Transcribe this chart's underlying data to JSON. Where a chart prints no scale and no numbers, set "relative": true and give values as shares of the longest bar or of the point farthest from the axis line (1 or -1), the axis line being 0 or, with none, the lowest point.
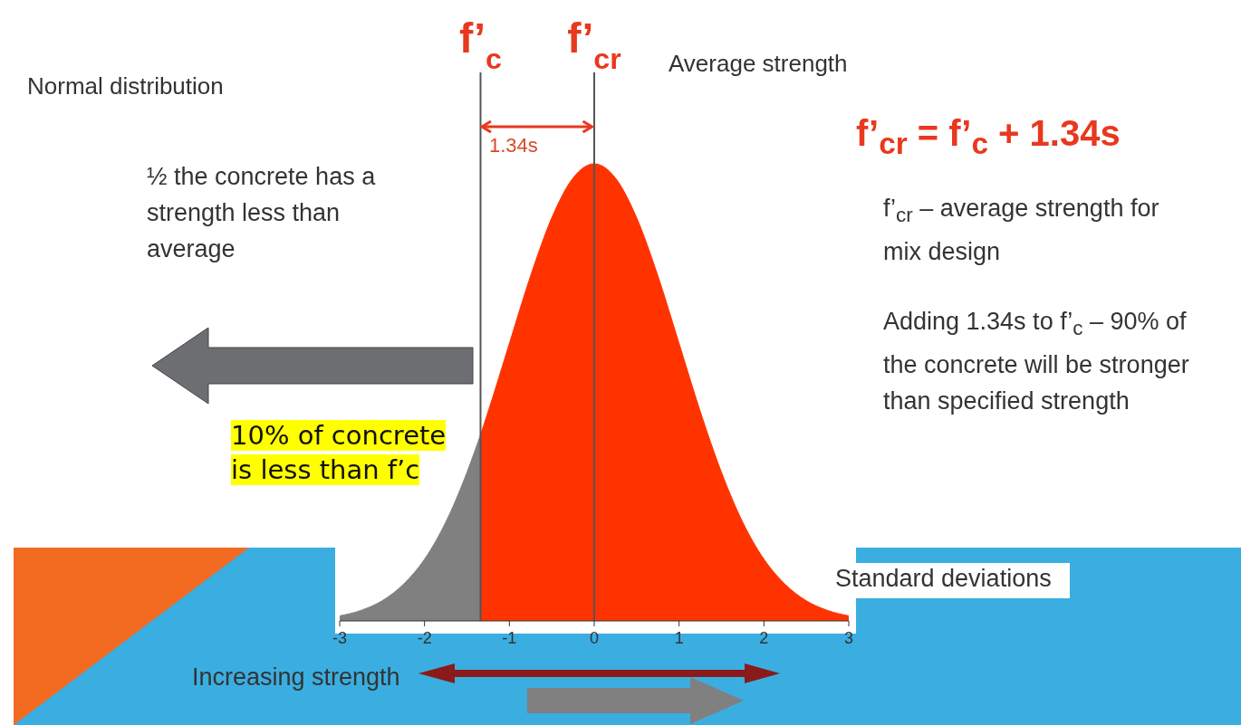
{
  "chart_data": {
    "type": "area",
    "relative": true,
    "xlabel": "Standard deviations",
    "xlim": [
      -3,
      3
    ],
    "xticks": [
      -3,
      -2,
      -1,
      0,
      1,
      2,
      3
    ],
    "series": [
      {
        "color": "#808080",
        "x": [
          -3,
          -2.75,
          -2.5,
          -2.25,
          -2,
          -1.75,
          -1.5,
          -1.34
        ],
        "values": [
          0.011,
          0.023,
          0.044,
          0.08,
          0.135,
          0.216,
          0.325,
          0.407
        ]
      },
      {
        "color": "#ff3300",
        "x": [
          -1.34,
          -1.25,
          -1,
          -0.75,
          -0.5,
          -0.25,
          0,
          0.25,
          0.5,
          0.75,
          1,
          1.25,
          1.5,
          1.75,
          2,
          2.25,
          2.5,
          2.75,
          3
        ],
        "values": [
          0.407,
          0.458,
          0.607,
          0.755,
          0.882,
          0.969,
          1,
          0.969,
          0.882,
          0.755,
          0.607,
          0.458,
          0.325,
          0.216,
          0.135,
          0.08,
          0.044,
          0.023,
          0.011
        ]
      }
    ],
    "ref_lines": [
      {
        "axis": "x",
        "value": -1.34,
        "label": "f’$_{c}$",
        "color": "#555555"
      },
      {
        "axis": "x",
        "value": 0,
        "label": "f’$_{cr}$",
        "color": "#555555"
      }
    ],
    "annotations": [
      "Normal distribution",
      "Average strength",
      "1.34s",
      "½ the concrete has a strength less than average",
      "f’$_{cr}$ = f’$_{c}$ + 1.34s",
      "f’$_{cr}$ – average strength for mix design",
      "Adding 1.34s to f’$_{c}$ – 90% of the concrete will be stronger than specified strength",
      "10% of concrete is less than f’c",
      "Increasing strength"
    ]
  }
}
